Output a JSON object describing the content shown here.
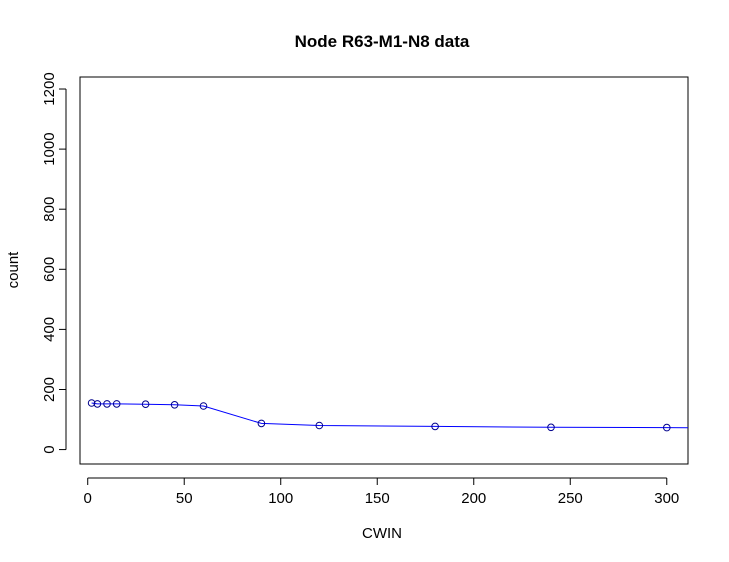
{
  "chart_data": {
    "type": "line",
    "title": "Node R63-M1-N8 data",
    "xlabel": "CWIN",
    "ylabel": "count",
    "xlim": [
      -4,
      311
    ],
    "ylim": [
      -48,
      1240
    ],
    "x_ticks": [
      0,
      50,
      100,
      150,
      200,
      250,
      300
    ],
    "y_ticks": [
      0,
      200,
      400,
      600,
      800,
      1000,
      1200
    ],
    "grid": false,
    "legend": "none",
    "series": [
      {
        "color": "#0000ff",
        "marker": "open-circle",
        "marker_color": "#00008b",
        "x": [
          2,
          5,
          10,
          15,
          30,
          45,
          60,
          90,
          120,
          180,
          240,
          300
        ],
        "y": [
          155,
          152,
          152,
          152,
          151,
          149,
          145,
          87,
          80,
          77,
          74,
          73
        ]
      }
    ]
  }
}
